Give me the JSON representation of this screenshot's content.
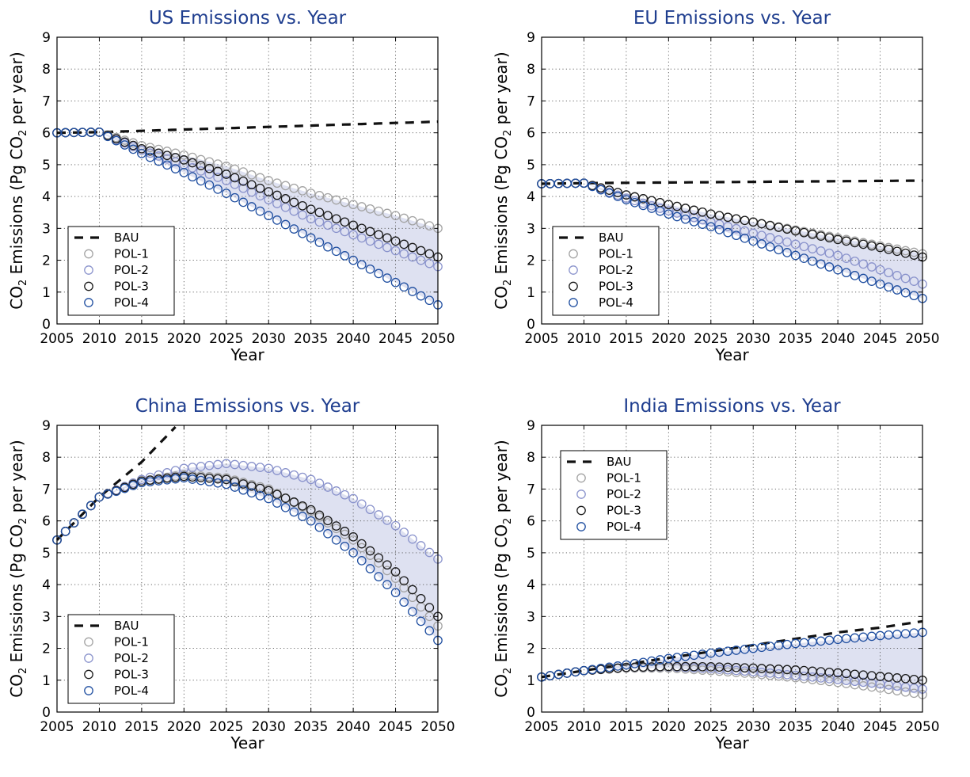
{
  "colors": {
    "title": "#1f3e8f",
    "bau": "#111111",
    "pol1": "#a3a3a3",
    "pol2": "#8a93cc",
    "pol3": "#1a1a1a",
    "pol4": "#1f4ea0",
    "band": "#d8dcef"
  },
  "chart_data": [
    {
      "type": "scatter",
      "title": "US Emissions vs. Year",
      "xlabel": "Year",
      "ylabel_parts": [
        "CO",
        "2",
        " Emissions (Pg CO",
        "2",
        " per year)"
      ],
      "xlim": [
        2005,
        2050
      ],
      "ylim": [
        0,
        9
      ],
      "xticks": [
        "2005",
        "2010",
        "2015",
        "2020",
        "2025",
        "2030",
        "2035",
        "2040",
        "2045",
        "2050"
      ],
      "yticks": [
        "0",
        "1",
        "2",
        "3",
        "4",
        "5",
        "6",
        "7",
        "8",
        "9"
      ],
      "grid": true,
      "legend_position": "lower-left",
      "series": [
        {
          "name": "BAU",
          "style": "dashed",
          "points": [
            [
              2005,
              6.0
            ],
            [
              2010,
              6.02
            ],
            [
              2050,
              6.35
            ]
          ]
        },
        {
          "name": "POL-1",
          "style": "circle",
          "points": [
            [
              2005,
              6.0
            ],
            [
              2010,
              6.02
            ],
            [
              2015,
              5.6
            ],
            [
              2020,
              5.3
            ],
            [
              2025,
              4.95
            ],
            [
              2030,
              4.5
            ],
            [
              2035,
              4.1
            ],
            [
              2040,
              3.75
            ],
            [
              2045,
              3.4
            ],
            [
              2050,
              3.0
            ]
          ]
        },
        {
          "name": "POL-2",
          "style": "circle",
          "points": [
            [
              2005,
              6.0
            ],
            [
              2010,
              6.02
            ],
            [
              2015,
              5.45
            ],
            [
              2020,
              5.0
            ],
            [
              2025,
              4.5
            ],
            [
              2030,
              3.9
            ],
            [
              2035,
              3.3
            ],
            [
              2040,
              2.8
            ],
            [
              2045,
              2.3
            ],
            [
              2050,
              1.8
            ]
          ]
        },
        {
          "name": "POL-3",
          "style": "circle",
          "points": [
            [
              2005,
              6.0
            ],
            [
              2010,
              6.02
            ],
            [
              2015,
              5.5
            ],
            [
              2020,
              5.15
            ],
            [
              2025,
              4.7
            ],
            [
              2030,
              4.15
            ],
            [
              2035,
              3.6
            ],
            [
              2040,
              3.1
            ],
            [
              2045,
              2.6
            ],
            [
              2050,
              2.1
            ]
          ]
        },
        {
          "name": "POL-4",
          "style": "circle",
          "points": [
            [
              2005,
              6.0
            ],
            [
              2010,
              6.02
            ],
            [
              2015,
              5.35
            ],
            [
              2020,
              4.75
            ],
            [
              2025,
              4.1
            ],
            [
              2030,
              3.4
            ],
            [
              2035,
              2.7
            ],
            [
              2040,
              2.0
            ],
            [
              2045,
              1.3
            ],
            [
              2050,
              0.6
            ]
          ]
        }
      ]
    },
    {
      "type": "scatter",
      "title": "EU Emissions vs. Year",
      "xlabel": "Year",
      "ylabel_parts": [
        "CO",
        "2",
        " Emissions (Pg CO",
        "2",
        " per year)"
      ],
      "xlim": [
        2005,
        2050
      ],
      "ylim": [
        0,
        9
      ],
      "xticks": [
        "2005",
        "2010",
        "2015",
        "2020",
        "2025",
        "2030",
        "2035",
        "2040",
        "2045",
        "2050"
      ],
      "yticks": [
        "0",
        "1",
        "2",
        "3",
        "4",
        "5",
        "6",
        "7",
        "8",
        "9"
      ],
      "grid": true,
      "legend_position": "lower-left",
      "series": [
        {
          "name": "BAU",
          "style": "dashed",
          "points": [
            [
              2005,
              4.4
            ],
            [
              2010,
              4.42
            ],
            [
              2050,
              4.5
            ]
          ]
        },
        {
          "name": "POL-1",
          "style": "circle",
          "points": [
            [
              2005,
              4.4
            ],
            [
              2010,
              4.42
            ],
            [
              2015,
              4.05
            ],
            [
              2020,
              3.75
            ],
            [
              2025,
              3.45
            ],
            [
              2030,
              3.2
            ],
            [
              2035,
              2.95
            ],
            [
              2040,
              2.7
            ],
            [
              2045,
              2.45
            ],
            [
              2050,
              2.2
            ]
          ]
        },
        {
          "name": "POL-2",
          "style": "circle",
          "points": [
            [
              2005,
              4.4
            ],
            [
              2010,
              4.42
            ],
            [
              2015,
              3.95
            ],
            [
              2020,
              3.55
            ],
            [
              2025,
              3.2
            ],
            [
              2030,
              2.85
            ],
            [
              2035,
              2.5
            ],
            [
              2040,
              2.15
            ],
            [
              2045,
              1.7
            ],
            [
              2050,
              1.25
            ]
          ]
        },
        {
          "name": "POL-3",
          "style": "circle",
          "points": [
            [
              2005,
              4.4
            ],
            [
              2010,
              4.42
            ],
            [
              2015,
              4.05
            ],
            [
              2020,
              3.75
            ],
            [
              2025,
              3.45
            ],
            [
              2030,
              3.2
            ],
            [
              2035,
              2.92
            ],
            [
              2040,
              2.65
            ],
            [
              2045,
              2.4
            ],
            [
              2050,
              2.1
            ]
          ]
        },
        {
          "name": "POL-4",
          "style": "circle",
          "points": [
            [
              2005,
              4.4
            ],
            [
              2010,
              4.42
            ],
            [
              2015,
              3.9
            ],
            [
              2020,
              3.45
            ],
            [
              2025,
              3.05
            ],
            [
              2030,
              2.6
            ],
            [
              2035,
              2.15
            ],
            [
              2040,
              1.7
            ],
            [
              2045,
              1.25
            ],
            [
              2050,
              0.8
            ]
          ]
        }
      ]
    },
    {
      "type": "scatter",
      "title": "China Emissions vs. Year",
      "xlabel": "Year",
      "ylabel_parts": [
        "CO",
        "2",
        " Emissions (Pg CO",
        "2",
        " per year)"
      ],
      "xlim": [
        2005,
        2050
      ],
      "ylim": [
        0,
        9
      ],
      "xticks": [
        "2005",
        "2010",
        "2015",
        "2020",
        "2025",
        "2030",
        "2035",
        "2040",
        "2045",
        "2050"
      ],
      "yticks": [
        "0",
        "1",
        "2",
        "3",
        "4",
        "5",
        "6",
        "7",
        "8",
        "9"
      ],
      "grid": true,
      "legend_position": "lower-left",
      "series": [
        {
          "name": "BAU",
          "style": "dashed",
          "points": [
            [
              2005,
              5.4
            ],
            [
              2010,
              6.75
            ],
            [
              2015,
              7.85
            ],
            [
              2019,
              8.95
            ]
          ]
        },
        {
          "name": "POL-1",
          "style": "circle",
          "points": [
            [
              2005,
              5.4
            ],
            [
              2010,
              6.75
            ],
            [
              2015,
              7.25
            ],
            [
              2020,
              7.45
            ],
            [
              2025,
              7.35
            ],
            [
              2030,
              7.0
            ],
            [
              2035,
              6.3
            ],
            [
              2040,
              5.4
            ],
            [
              2045,
              4.2
            ],
            [
              2050,
              2.7
            ]
          ]
        },
        {
          "name": "POL-2",
          "style": "circle",
          "points": [
            [
              2005,
              5.4
            ],
            [
              2010,
              6.75
            ],
            [
              2015,
              7.3
            ],
            [
              2020,
              7.65
            ],
            [
              2025,
              7.8
            ],
            [
              2030,
              7.65
            ],
            [
              2035,
              7.3
            ],
            [
              2040,
              6.7
            ],
            [
              2045,
              5.85
            ],
            [
              2050,
              4.8
            ]
          ]
        },
        {
          "name": "POL-3",
          "style": "circle",
          "points": [
            [
              2005,
              5.4
            ],
            [
              2010,
              6.75
            ],
            [
              2015,
              7.25
            ],
            [
              2020,
              7.4
            ],
            [
              2025,
              7.3
            ],
            [
              2030,
              6.95
            ],
            [
              2035,
              6.35
            ],
            [
              2040,
              5.5
            ],
            [
              2045,
              4.4
            ],
            [
              2050,
              3.0
            ]
          ]
        },
        {
          "name": "POL-4",
          "style": "circle",
          "points": [
            [
              2005,
              5.4
            ],
            [
              2010,
              6.75
            ],
            [
              2015,
              7.2
            ],
            [
              2020,
              7.35
            ],
            [
              2025,
              7.15
            ],
            [
              2030,
              6.7
            ],
            [
              2035,
              6.0
            ],
            [
              2040,
              5.0
            ],
            [
              2045,
              3.75
            ],
            [
              2050,
              2.25
            ]
          ]
        }
      ]
    },
    {
      "type": "scatter",
      "title": "India Emissions vs. Year",
      "xlabel": "Year",
      "ylabel_parts": [
        "CO",
        "2",
        " Emissions (Pg CO",
        "2",
        " per year)"
      ],
      "xlim": [
        2005,
        2050
      ],
      "ylim": [
        0,
        9
      ],
      "xticks": [
        "2005",
        "2010",
        "2015",
        "2020",
        "2025",
        "2030",
        "2035",
        "2040",
        "2045",
        "2050"
      ],
      "yticks": [
        "0",
        "1",
        "2",
        "3",
        "4",
        "5",
        "6",
        "7",
        "8",
        "9"
      ],
      "grid": true,
      "legend_position": "upper-left",
      "series": [
        {
          "name": "BAU",
          "style": "dashed",
          "points": [
            [
              2005,
              1.1
            ],
            [
              2010,
              1.3
            ],
            [
              2015,
              1.5
            ],
            [
              2020,
              1.7
            ],
            [
              2025,
              1.9
            ],
            [
              2030,
              2.1
            ],
            [
              2035,
              2.3
            ],
            [
              2040,
              2.5
            ],
            [
              2045,
              2.65
            ],
            [
              2050,
              2.85
            ]
          ]
        },
        {
          "name": "POL-1",
          "style": "circle",
          "points": [
            [
              2005,
              1.1
            ],
            [
              2010,
              1.3
            ],
            [
              2015,
              1.38
            ],
            [
              2020,
              1.38
            ],
            [
              2025,
              1.3
            ],
            [
              2030,
              1.2
            ],
            [
              2035,
              1.08
            ],
            [
              2040,
              0.93
            ],
            [
              2045,
              0.75
            ],
            [
              2050,
              0.55
            ]
          ]
        },
        {
          "name": "POL-2",
          "style": "circle",
          "points": [
            [
              2005,
              1.1
            ],
            [
              2010,
              1.3
            ],
            [
              2015,
              1.4
            ],
            [
              2020,
              1.42
            ],
            [
              2025,
              1.36
            ],
            [
              2030,
              1.27
            ],
            [
              2035,
              1.15
            ],
            [
              2040,
              1.02
            ],
            [
              2045,
              0.88
            ],
            [
              2050,
              0.72
            ]
          ]
        },
        {
          "name": "POL-3",
          "style": "circle",
          "points": [
            [
              2005,
              1.1
            ],
            [
              2010,
              1.3
            ],
            [
              2015,
              1.4
            ],
            [
              2020,
              1.43
            ],
            [
              2025,
              1.42
            ],
            [
              2030,
              1.38
            ],
            [
              2035,
              1.32
            ],
            [
              2040,
              1.23
            ],
            [
              2045,
              1.12
            ],
            [
              2050,
              1.0
            ]
          ]
        },
        {
          "name": "POL-4",
          "style": "circle",
          "points": [
            [
              2005,
              1.1
            ],
            [
              2010,
              1.3
            ],
            [
              2015,
              1.48
            ],
            [
              2020,
              1.68
            ],
            [
              2025,
              1.85
            ],
            [
              2030,
              2.0
            ],
            [
              2035,
              2.15
            ],
            [
              2040,
              2.28
            ],
            [
              2045,
              2.4
            ],
            [
              2050,
              2.5
            ]
          ]
        }
      ]
    }
  ]
}
